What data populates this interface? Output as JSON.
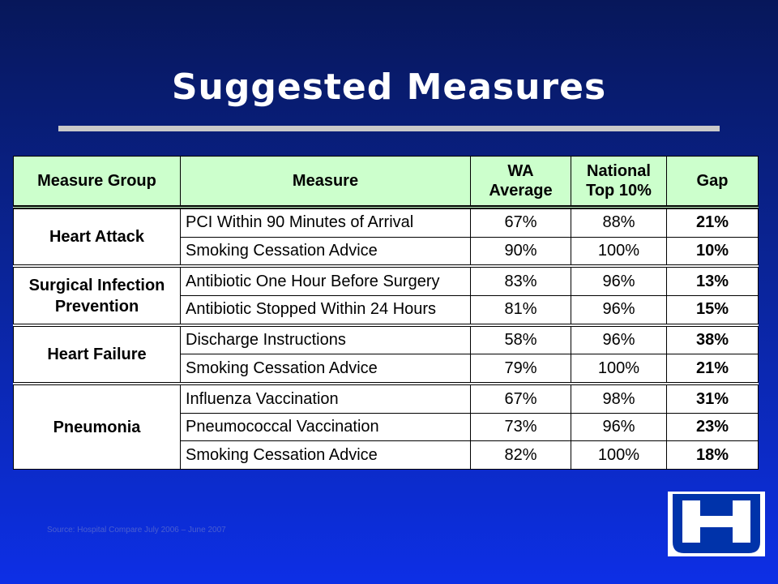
{
  "title": "Suggested Measures",
  "table": {
    "headers": {
      "group": "Measure Group",
      "measure": "Measure",
      "wa_line1": "WA",
      "wa_line2": "Average",
      "nat_line1": "National",
      "nat_line2": "Top 10%",
      "gap": "Gap"
    },
    "groups": [
      {
        "name": "Heart Attack",
        "rows": [
          {
            "measure": "PCI Within 90 Minutes of Arrival",
            "wa": "67%",
            "national": "88%",
            "gap": "21%"
          },
          {
            "measure": "Smoking Cessation Advice",
            "wa": "90%",
            "national": "100%",
            "gap": "10%"
          }
        ]
      },
      {
        "name_line1": "Surgical Infection",
        "name_line2": "Prevention",
        "rows": [
          {
            "measure": "Antibiotic One Hour Before Surgery",
            "wa": "83%",
            "national": "96%",
            "gap": "13%"
          },
          {
            "measure": "Antibiotic Stopped Within 24 Hours",
            "wa": "81%",
            "national": "96%",
            "gap": "15%"
          }
        ]
      },
      {
        "name": "Heart Failure",
        "rows": [
          {
            "measure": "Discharge Instructions",
            "wa": "58%",
            "national": "96%",
            "gap": "38%"
          },
          {
            "measure": "Smoking Cessation Advice",
            "wa": "79%",
            "national": "100%",
            "gap": "21%"
          }
        ]
      },
      {
        "name": "Pneumonia",
        "rows": [
          {
            "measure": "Influenza Vaccination",
            "wa": "67%",
            "national": "98%",
            "gap": "31%"
          },
          {
            "measure": "Pneumococcal Vaccination",
            "wa": "73%",
            "national": "96%",
            "gap": "23%"
          },
          {
            "measure": "Smoking Cessation Advice",
            "wa": "82%",
            "national": "100%",
            "gap": "18%"
          }
        ]
      }
    ]
  },
  "source": "Source: Hospital Compare July 2006 – June 2007",
  "logo": {
    "icon": "hospital-h-icon",
    "color": "#0033aa"
  },
  "colors": {
    "header_bg": "#ccffcc",
    "background_top": "#07175a",
    "background_bottom": "#0d2fe6"
  }
}
